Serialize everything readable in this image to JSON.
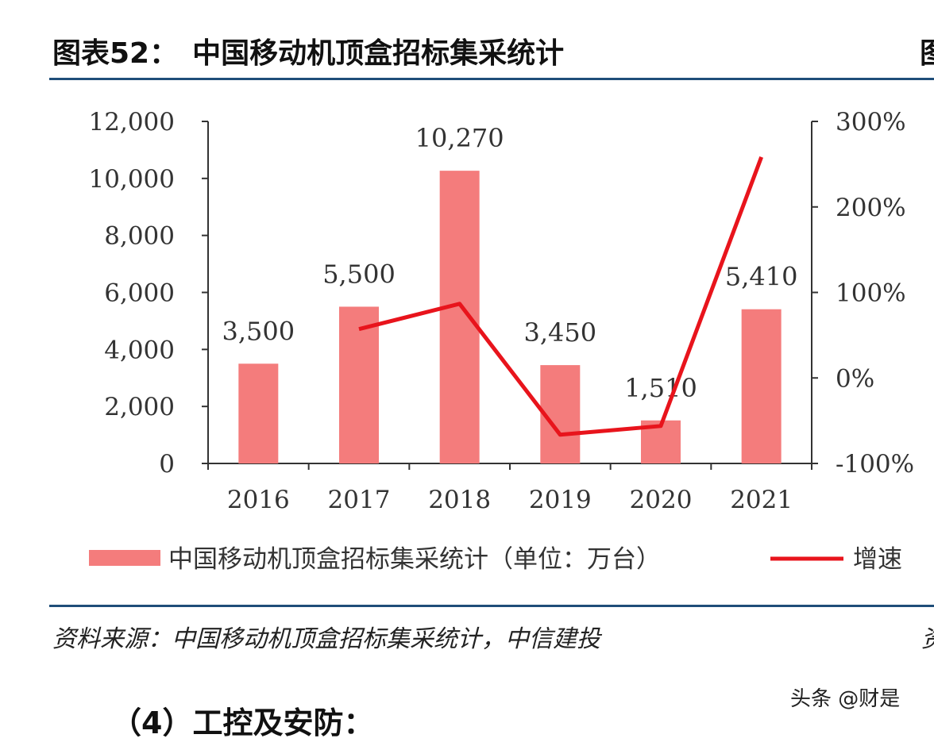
{
  "header": {
    "title": "图表52：　中国移动机顶盒招标集采统计",
    "title_edge": "图"
  },
  "footer": {
    "source": "资料来源：中国移动机顶盒招标集采统计，中信建投",
    "source_edge": "资",
    "watermark": "头条 @财是",
    "next_heading": "（4）工控及安防："
  },
  "chart_data": {
    "type": "bar+line",
    "categories": [
      "2016",
      "2017",
      "2018",
      "2019",
      "2020",
      "2021"
    ],
    "series": [
      {
        "name": "中国移动机顶盒招标集采统计（单位：万台）",
        "type": "bar",
        "axis": "left",
        "values": [
          3500,
          5500,
          10270,
          3450,
          1510,
          5410
        ],
        "labels": [
          "3,500",
          "5,500",
          "10,270",
          "3,450",
          "1,510",
          "5,410"
        ],
        "color": "#f47c7c"
      },
      {
        "name": "增速",
        "type": "line",
        "axis": "right",
        "values": [
          null,
          57.1,
          86.7,
          -66.4,
          -56.2,
          258.3
        ],
        "color": "#e8141c"
      }
    ],
    "y_left": {
      "range": [
        0,
        12000
      ],
      "ticks": [
        "0",
        "2,000",
        "4,000",
        "6,000",
        "8,000",
        "10,000",
        "12,000"
      ]
    },
    "y_right": {
      "range": [
        -100,
        300
      ],
      "ticks": [
        "-100%",
        "0%",
        "100%",
        "200%",
        "300%"
      ]
    },
    "grid": false,
    "legend": "bottom"
  }
}
